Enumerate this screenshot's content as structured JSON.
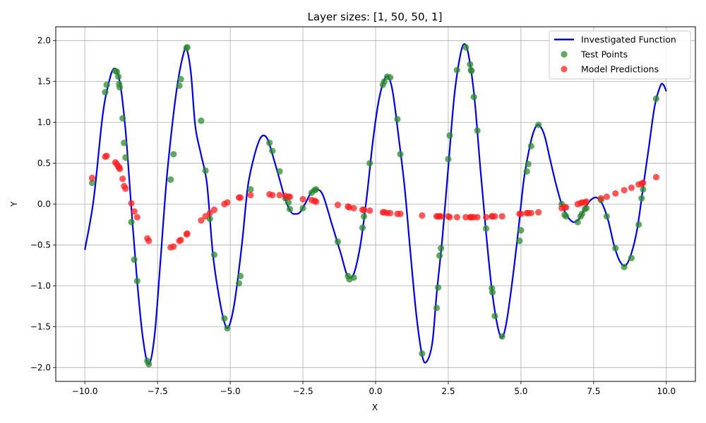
{
  "chart_data": {
    "type": "scatter",
    "title": "Layer sizes: [1, 50, 50, 1]",
    "xlabel": "X",
    "ylabel": "Y",
    "xlim": [
      -11.0,
      11.0
    ],
    "ylim": [
      -2.17,
      2.17
    ],
    "xticks": [
      -10.0,
      -7.5,
      -5.0,
      -2.5,
      0.0,
      2.5,
      5.0,
      7.5,
      10.0
    ],
    "xtick_labels": [
      "−10.0",
      "−7.5",
      "−5.0",
      "−2.5",
      "0.0",
      "2.5",
      "5.0",
      "7.5",
      "10.0"
    ],
    "yticks": [
      -2.0,
      -1.5,
      -1.0,
      -0.5,
      0.0,
      0.5,
      1.0,
      1.5,
      2.0
    ],
    "ytick_labels": [
      "−2.0",
      "−1.5",
      "−1.0",
      "−0.5",
      "0.0",
      "0.5",
      "1.0",
      "1.5",
      "2.0"
    ],
    "grid": true,
    "legend_position": "top-right",
    "colors": {
      "line": "#0000dd",
      "test": "#2e8b2e",
      "pred": "#ff2020"
    },
    "series": [
      {
        "name": "Investigated Function",
        "kind": "line",
        "points": [
          [
            -10.0,
            -0.56
          ],
          [
            -9.7,
            0.05
          ],
          [
            -9.4,
            1.05
          ],
          [
            -9.2,
            1.45
          ],
          [
            -9.0,
            1.66
          ],
          [
            -8.8,
            1.5
          ],
          [
            -8.6,
            0.9
          ],
          [
            -8.4,
            -0.05
          ],
          [
            -8.2,
            -0.95
          ],
          [
            -8.0,
            -1.65
          ],
          [
            -7.8,
            -1.96
          ],
          [
            -7.6,
            -1.6
          ],
          [
            -7.4,
            -0.7
          ],
          [
            -7.2,
            0.25
          ],
          [
            -7.0,
            0.95
          ],
          [
            -6.8,
            1.5
          ],
          [
            -6.6,
            1.85
          ],
          [
            -6.5,
            1.9
          ],
          [
            -6.35,
            1.6
          ],
          [
            -6.2,
            0.95
          ],
          [
            -6.0,
            0.6
          ],
          [
            -5.8,
            0.25
          ],
          [
            -5.6,
            -0.6
          ],
          [
            -5.4,
            -1.1
          ],
          [
            -5.2,
            -1.45
          ],
          [
            -5.05,
            -1.5
          ],
          [
            -4.85,
            -1.2
          ],
          [
            -4.6,
            -0.5
          ],
          [
            -4.4,
            0.2
          ],
          [
            -4.2,
            0.55
          ],
          [
            -4.0,
            0.78
          ],
          [
            -3.85,
            0.84
          ],
          [
            -3.7,
            0.78
          ],
          [
            -3.5,
            0.55
          ],
          [
            -3.3,
            0.3
          ],
          [
            -3.1,
            0.05
          ],
          [
            -2.9,
            -0.1
          ],
          [
            -2.75,
            -0.12
          ],
          [
            -2.6,
            -0.1
          ],
          [
            -2.4,
            0.02
          ],
          [
            -2.2,
            0.15
          ],
          [
            -2.0,
            0.18
          ],
          [
            -1.8,
            0.1
          ],
          [
            -1.5,
            -0.25
          ],
          [
            -1.2,
            -0.6
          ],
          [
            -1.0,
            -0.85
          ],
          [
            -0.85,
            -0.9
          ],
          [
            -0.7,
            -0.8
          ],
          [
            -0.5,
            -0.45
          ],
          [
            -0.3,
            0.1
          ],
          [
            -0.1,
            0.75
          ],
          [
            0.1,
            1.25
          ],
          [
            0.3,
            1.52
          ],
          [
            0.45,
            1.55
          ],
          [
            0.6,
            1.35
          ],
          [
            0.8,
            0.8
          ],
          [
            1.0,
            0.2
          ],
          [
            1.2,
            -0.6
          ],
          [
            1.4,
            -1.35
          ],
          [
            1.6,
            -1.85
          ],
          [
            1.75,
            -1.93
          ],
          [
            1.95,
            -1.7
          ],
          [
            2.1,
            -1.1
          ],
          [
            2.3,
            -0.4
          ],
          [
            2.5,
            0.45
          ],
          [
            2.7,
            1.3
          ],
          [
            2.9,
            1.8
          ],
          [
            3.05,
            1.96
          ],
          [
            3.2,
            1.82
          ],
          [
            3.4,
            1.3
          ],
          [
            3.6,
            0.45
          ],
          [
            3.8,
            -0.35
          ],
          [
            4.0,
            -1.05
          ],
          [
            4.2,
            -1.5
          ],
          [
            4.35,
            -1.63
          ],
          [
            4.5,
            -1.45
          ],
          [
            4.7,
            -0.95
          ],
          [
            4.9,
            -0.35
          ],
          [
            5.1,
            0.3
          ],
          [
            5.3,
            0.7
          ],
          [
            5.45,
            0.9
          ],
          [
            5.6,
            0.97
          ],
          [
            5.8,
            0.85
          ],
          [
            6.0,
            0.55
          ],
          [
            6.2,
            0.25
          ],
          [
            6.4,
            0.0
          ],
          [
            6.6,
            -0.15
          ],
          [
            6.8,
            -0.22
          ],
          [
            7.0,
            -0.18
          ],
          [
            7.2,
            -0.05
          ],
          [
            7.4,
            0.05
          ],
          [
            7.6,
            0.08
          ],
          [
            7.8,
            0.0
          ],
          [
            8.0,
            -0.2
          ],
          [
            8.2,
            -0.5
          ],
          [
            8.4,
            -0.7
          ],
          [
            8.6,
            -0.75
          ],
          [
            8.8,
            -0.6
          ],
          [
            9.0,
            -0.3
          ],
          [
            9.2,
            0.2
          ],
          [
            9.4,
            0.7
          ],
          [
            9.6,
            1.2
          ],
          [
            9.8,
            1.45
          ],
          [
            9.9,
            1.46
          ],
          [
            10.0,
            1.38
          ]
        ]
      },
      {
        "name": "Test Points",
        "kind": "scatter",
        "points": [
          [
            -9.75,
            0.26
          ],
          [
            -9.3,
            1.37
          ],
          [
            -9.25,
            1.46
          ],
          [
            -8.95,
            1.63
          ],
          [
            -8.9,
            1.62
          ],
          [
            -8.85,
            1.56
          ],
          [
            -8.82,
            1.47
          ],
          [
            -8.8,
            1.43
          ],
          [
            -8.7,
            1.05
          ],
          [
            -8.65,
            0.75
          ],
          [
            -8.6,
            0.57
          ],
          [
            -8.4,
            -0.22
          ],
          [
            -8.3,
            -0.68
          ],
          [
            -8.2,
            -0.94
          ],
          [
            -7.85,
            -1.92
          ],
          [
            -7.8,
            -1.96
          ],
          [
            -7.05,
            0.3
          ],
          [
            -6.95,
            0.61
          ],
          [
            -6.75,
            1.45
          ],
          [
            -6.7,
            1.53
          ],
          [
            -6.5,
            1.91
          ],
          [
            -6.48,
            1.92
          ],
          [
            -6.0,
            1.02
          ],
          [
            -5.85,
            0.41
          ],
          [
            -5.7,
            -0.18
          ],
          [
            -5.55,
            -0.62
          ],
          [
            -5.2,
            -1.4
          ],
          [
            -5.1,
            -1.52
          ],
          [
            -4.7,
            -0.97
          ],
          [
            -4.65,
            -0.88
          ],
          [
            -4.3,
            0.18
          ],
          [
            -3.65,
            0.75
          ],
          [
            -3.55,
            0.65
          ],
          [
            -3.3,
            0.4
          ],
          [
            -3.1,
            0.07
          ],
          [
            -3.0,
            0.02
          ],
          [
            -2.95,
            -0.06
          ],
          [
            -2.5,
            -0.05
          ],
          [
            -2.2,
            0.14
          ],
          [
            -2.1,
            0.17
          ],
          [
            -2.05,
            0.18
          ],
          [
            -1.3,
            -0.46
          ],
          [
            -0.95,
            -0.88
          ],
          [
            -0.9,
            -0.92
          ],
          [
            -0.75,
            -0.9
          ],
          [
            -0.45,
            -0.29
          ],
          [
            -0.4,
            -0.15
          ],
          [
            -0.2,
            0.5
          ],
          [
            0.25,
            1.46
          ],
          [
            0.3,
            1.5
          ],
          [
            0.4,
            1.56
          ],
          [
            0.5,
            1.55
          ],
          [
            0.75,
            1.04
          ],
          [
            0.85,
            0.61
          ],
          [
            1.6,
            -1.83
          ],
          [
            2.1,
            -1.27
          ],
          [
            2.15,
            -1.02
          ],
          [
            2.2,
            -0.63
          ],
          [
            2.25,
            -0.54
          ],
          [
            2.5,
            0.55
          ],
          [
            2.55,
            0.84
          ],
          [
            2.8,
            1.64
          ],
          [
            3.1,
            1.92
          ],
          [
            3.25,
            1.71
          ],
          [
            3.28,
            1.64
          ],
          [
            3.3,
            1.63
          ],
          [
            3.38,
            1.31
          ],
          [
            3.5,
            0.9
          ],
          [
            3.8,
            -0.3
          ],
          [
            4.0,
            -1.03
          ],
          [
            4.02,
            -1.08
          ],
          [
            4.1,
            -1.37
          ],
          [
            4.35,
            -1.62
          ],
          [
            4.95,
            -0.45
          ],
          [
            5.0,
            -0.32
          ],
          [
            5.2,
            0.4
          ],
          [
            5.25,
            0.49
          ],
          [
            5.35,
            0.71
          ],
          [
            5.6,
            0.97
          ],
          [
            6.4,
            0.0
          ],
          [
            6.5,
            -0.13
          ],
          [
            6.55,
            -0.15
          ],
          [
            6.95,
            -0.22
          ],
          [
            7.05,
            -0.15
          ],
          [
            7.1,
            -0.12
          ],
          [
            7.2,
            -0.06
          ],
          [
            7.25,
            -0.05
          ],
          [
            7.75,
            0.05
          ],
          [
            7.95,
            -0.15
          ],
          [
            8.25,
            -0.54
          ],
          [
            8.55,
            -0.77
          ],
          [
            8.8,
            -0.66
          ],
          [
            9.05,
            -0.25
          ],
          [
            9.15,
            0.07
          ],
          [
            9.2,
            0.18
          ],
          [
            9.65,
            1.29
          ]
        ]
      },
      {
        "name": "Model Predictions",
        "kind": "scatter",
        "points": [
          [
            -9.75,
            0.32
          ],
          [
            -9.3,
            0.58
          ],
          [
            -9.25,
            0.59
          ],
          [
            -8.95,
            0.51
          ],
          [
            -8.9,
            0.49
          ],
          [
            -8.85,
            0.46
          ],
          [
            -8.82,
            0.45
          ],
          [
            -8.8,
            0.43
          ],
          [
            -8.7,
            0.31
          ],
          [
            -8.65,
            0.22
          ],
          [
            -8.6,
            0.19
          ],
          [
            -8.4,
            0.01
          ],
          [
            -8.3,
            -0.09
          ],
          [
            -8.2,
            -0.16
          ],
          [
            -7.85,
            -0.42
          ],
          [
            -7.8,
            -0.45
          ],
          [
            -7.05,
            -0.53
          ],
          [
            -6.95,
            -0.52
          ],
          [
            -6.75,
            -0.45
          ],
          [
            -6.7,
            -0.44
          ],
          [
            -6.5,
            -0.37
          ],
          [
            -6.48,
            -0.36
          ],
          [
            -6.0,
            -0.2
          ],
          [
            -5.85,
            -0.15
          ],
          [
            -5.7,
            -0.11
          ],
          [
            -5.55,
            -0.07
          ],
          [
            -5.2,
            0.0
          ],
          [
            -5.1,
            0.02
          ],
          [
            -4.7,
            0.08
          ],
          [
            -4.65,
            0.08
          ],
          [
            -4.3,
            0.11
          ],
          [
            -3.65,
            0.12
          ],
          [
            -3.55,
            0.11
          ],
          [
            -3.3,
            0.11
          ],
          [
            -3.1,
            0.1
          ],
          [
            -3.0,
            0.09
          ],
          [
            -2.95,
            0.09
          ],
          [
            -2.5,
            0.06
          ],
          [
            -2.2,
            0.05
          ],
          [
            -2.1,
            0.04
          ],
          [
            -2.05,
            0.03
          ],
          [
            -1.3,
            -0.01
          ],
          [
            -0.95,
            -0.03
          ],
          [
            -0.9,
            -0.04
          ],
          [
            -0.75,
            -0.05
          ],
          [
            -0.45,
            -0.07
          ],
          [
            -0.4,
            -0.07
          ],
          [
            -0.2,
            -0.08
          ],
          [
            0.25,
            -0.1
          ],
          [
            0.3,
            -0.1
          ],
          [
            0.4,
            -0.11
          ],
          [
            0.5,
            -0.11
          ],
          [
            0.75,
            -0.12
          ],
          [
            0.85,
            -0.12
          ],
          [
            1.6,
            -0.14
          ],
          [
            2.1,
            -0.15
          ],
          [
            2.15,
            -0.15
          ],
          [
            2.2,
            -0.15
          ],
          [
            2.25,
            -0.15
          ],
          [
            2.5,
            -0.15
          ],
          [
            2.55,
            -0.16
          ],
          [
            2.8,
            -0.16
          ],
          [
            3.1,
            -0.16
          ],
          [
            3.25,
            -0.16
          ],
          [
            3.28,
            -0.16
          ],
          [
            3.3,
            -0.16
          ],
          [
            3.38,
            -0.16
          ],
          [
            3.5,
            -0.16
          ],
          [
            3.8,
            -0.16
          ],
          [
            4.0,
            -0.15
          ],
          [
            4.02,
            -0.15
          ],
          [
            4.1,
            -0.15
          ],
          [
            4.35,
            -0.15
          ],
          [
            4.95,
            -0.12
          ],
          [
            5.0,
            -0.12
          ],
          [
            5.2,
            -0.11
          ],
          [
            5.25,
            -0.11
          ],
          [
            5.35,
            -0.11
          ],
          [
            5.6,
            -0.1
          ],
          [
            6.4,
            -0.05
          ],
          [
            6.5,
            -0.04
          ],
          [
            6.55,
            -0.04
          ],
          [
            6.95,
            0.0
          ],
          [
            7.05,
            0.01
          ],
          [
            7.1,
            0.02
          ],
          [
            7.2,
            0.02
          ],
          [
            7.25,
            0.03
          ],
          [
            7.75,
            0.07
          ],
          [
            7.95,
            0.09
          ],
          [
            8.25,
            0.13
          ],
          [
            8.55,
            0.17
          ],
          [
            8.8,
            0.2
          ],
          [
            9.05,
            0.24
          ],
          [
            9.15,
            0.25
          ],
          [
            9.2,
            0.26
          ],
          [
            9.65,
            0.33
          ]
        ]
      }
    ]
  }
}
